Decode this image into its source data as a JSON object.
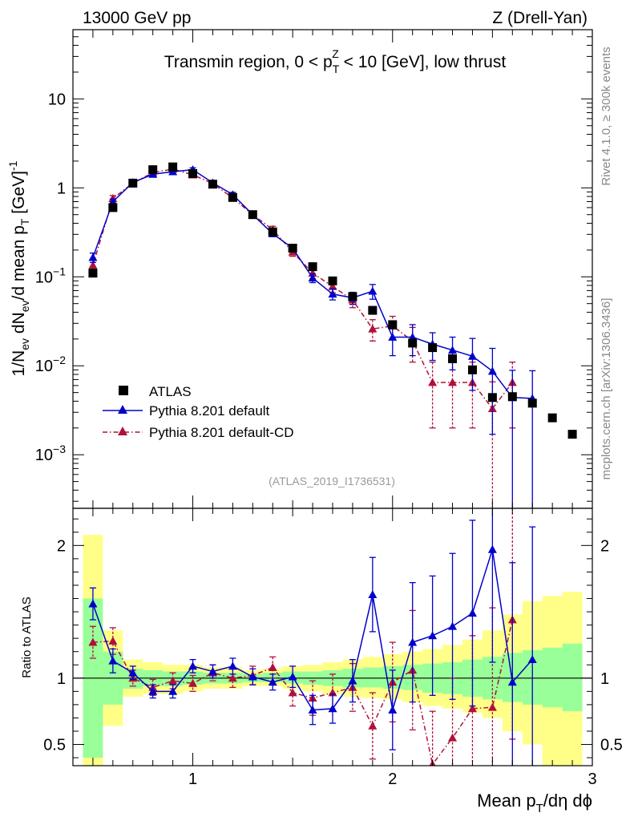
{
  "header": {
    "left": "13000 GeV pp",
    "right": "Z (Drell-Yan)"
  },
  "side": {
    "rivet": "Rivet 4.1.0, ≥ 300k events",
    "mcplots": "mcplots.cern.ch [arXiv:1306.3436]"
  },
  "chart_data": [
    {
      "panel": "main",
      "type": "scatter",
      "title_parts": [
        "Transmin region, 0 < p",
        "T",
        "Z",
        " < 10 [GeV], low thrust"
      ],
      "ylabel_parts": [
        "1/N",
        "ev",
        " dN",
        "ev",
        "/d mean p",
        "T",
        " [GeV]",
        "-1"
      ],
      "analysis_id": "(ATLAS_2019_I1736531)",
      "yscale": "log",
      "xlim": [
        0.4,
        3.0
      ],
      "ylim": [
        0.00025,
        60
      ],
      "y_ticks": [
        {
          "v": 0.001,
          "m": "10",
          "e": "−3"
        },
        {
          "v": 0.01,
          "m": "10",
          "e": "−2"
        },
        {
          "v": 0.1,
          "m": "10",
          "e": "−1"
        },
        {
          "v": 1,
          "m": "1",
          "e": ""
        },
        {
          "v": 10,
          "m": "10",
          "e": ""
        }
      ],
      "legend": {
        "position": "lower-left",
        "entries": [
          "ATLAS",
          "Pythia 8.201 default",
          "Pythia 8.201 default-CD"
        ]
      },
      "series": [
        {
          "name": "ATLAS",
          "color": "#000000",
          "marker": "square",
          "x": [
            0.5,
            0.6,
            0.7,
            0.8,
            0.9,
            1.0,
            1.1,
            1.2,
            1.3,
            1.4,
            1.5,
            1.6,
            1.7,
            1.8,
            1.9,
            2.0,
            2.1,
            2.2,
            2.3,
            2.4,
            2.5,
            2.6,
            2.7,
            2.8,
            2.9
          ],
          "y": [
            0.11,
            0.6,
            1.13,
            1.6,
            1.72,
            1.45,
            1.1,
            0.78,
            0.5,
            0.32,
            0.21,
            0.13,
            0.09,
            0.06,
            0.042,
            0.029,
            0.018,
            0.016,
            0.012,
            0.009,
            0.0044,
            0.0045,
            0.0038,
            0.0026,
            0.0017
          ]
        },
        {
          "name": "Pythia 8.201 default",
          "color": "#0000cc",
          "marker": "triangle",
          "line": "solid",
          "x": [
            0.5,
            0.6,
            0.7,
            0.8,
            0.9,
            1.0,
            1.1,
            1.2,
            1.3,
            1.4,
            1.5,
            1.6,
            1.7,
            1.8,
            1.9,
            2.0,
            2.1,
            2.2,
            2.3,
            2.4,
            2.5,
            2.6,
            2.7
          ],
          "y": [
            0.165,
            0.7,
            1.15,
            1.42,
            1.52,
            1.6,
            1.14,
            0.84,
            0.5,
            0.305,
            0.21,
            0.097,
            0.064,
            0.058,
            0.069,
            0.021,
            0.021,
            0.0175,
            0.015,
            0.0128,
            0.0087,
            0.0044,
            0.0043
          ],
          "yerr": [
            0.02,
            0.05,
            0.06,
            0.07,
            0.07,
            0.08,
            0.06,
            0.05,
            0.03,
            0.02,
            0.02,
            0.011,
            0.009,
            0.009,
            0.013,
            0.008,
            0.008,
            0.006,
            0.006,
            0.0075,
            0.007,
            0.0045,
            0.0045
          ]
        },
        {
          "name": "Pythia 8.201 default-CD",
          "color": "#b0103a",
          "marker": "triangle",
          "line": "dashdot",
          "x": [
            0.5,
            0.6,
            0.7,
            0.8,
            0.9,
            1.0,
            1.1,
            1.2,
            1.3,
            1.4,
            1.5,
            1.6,
            1.7,
            1.8,
            1.9,
            2.0,
            2.1,
            2.2,
            2.3,
            2.4,
            2.5,
            2.6
          ],
          "y": [
            0.135,
            0.76,
            1.13,
            1.48,
            1.63,
            1.4,
            1.12,
            0.77,
            0.5,
            0.34,
            0.19,
            0.11,
            0.078,
            0.055,
            0.026,
            0.028,
            0.019,
            0.0065,
            0.0065,
            0.0065,
            0.0033,
            0.0065
          ],
          "yerr": [
            0.02,
            0.06,
            0.07,
            0.08,
            0.08,
            0.08,
            0.06,
            0.05,
            0.035,
            0.03,
            0.02,
            0.015,
            0.012,
            0.01,
            0.007,
            0.008,
            0.008,
            0.0045,
            0.0045,
            0.0045,
            0.0033,
            0.0045
          ]
        }
      ]
    },
    {
      "panel": "ratio",
      "type": "line",
      "ylabel": "Ratio to ATLAS",
      "xlabel_parts": [
        "Mean p",
        "T",
        "/dη dϕ"
      ],
      "xlim": [
        0.4,
        3.0
      ],
      "ylim": [
        0.34,
        2.28
      ],
      "x_ticks": [
        1,
        2,
        3
      ],
      "y_ticks": [
        0.5,
        1,
        2
      ],
      "reference_line": 1,
      "bands": {
        "edges": [
          0.45,
          0.55,
          0.65,
          0.75,
          0.85,
          0.95,
          1.05,
          1.15,
          1.25,
          1.35,
          1.45,
          1.55,
          1.65,
          1.75,
          1.85,
          1.95,
          2.05,
          2.15,
          2.25,
          2.35,
          2.45,
          2.55,
          2.65,
          2.75,
          2.85,
          2.95
        ],
        "inner_color": "#99ff99",
        "outer_color": "#ffff88",
        "inner": [
          [
            0.4,
            1.6
          ],
          [
            0.8,
            1.2
          ],
          [
            0.92,
            1.07
          ],
          [
            0.94,
            1.06
          ],
          [
            0.94,
            1.05
          ],
          [
            0.95,
            1.05
          ],
          [
            0.96,
            1.04
          ],
          [
            0.96,
            1.04
          ],
          [
            0.97,
            1.03
          ],
          [
            0.97,
            1.04
          ],
          [
            0.96,
            1.05
          ],
          [
            0.95,
            1.05
          ],
          [
            0.94,
            1.06
          ],
          [
            0.93,
            1.07
          ],
          [
            0.93,
            1.08
          ],
          [
            0.92,
            1.09
          ],
          [
            0.91,
            1.1
          ],
          [
            0.89,
            1.11
          ],
          [
            0.88,
            1.12
          ],
          [
            0.86,
            1.14
          ],
          [
            0.84,
            1.16
          ],
          [
            0.82,
            1.19
          ],
          [
            0.8,
            1.21
          ],
          [
            0.78,
            1.23
          ],
          [
            0.75,
            1.26
          ]
        ],
        "outer": [
          [
            0.32,
            2.08
          ],
          [
            0.64,
            1.36
          ],
          [
            0.86,
            1.14
          ],
          [
            0.88,
            1.12
          ],
          [
            0.88,
            1.1
          ],
          [
            0.9,
            1.1
          ],
          [
            0.92,
            1.08
          ],
          [
            0.92,
            1.08
          ],
          [
            0.94,
            1.06
          ],
          [
            0.94,
            1.07
          ],
          [
            0.92,
            1.09
          ],
          [
            0.9,
            1.1
          ],
          [
            0.88,
            1.12
          ],
          [
            0.86,
            1.14
          ],
          [
            0.85,
            1.16
          ],
          [
            0.84,
            1.18
          ],
          [
            0.82,
            1.2
          ],
          [
            0.79,
            1.22
          ],
          [
            0.77,
            1.25
          ],
          [
            0.74,
            1.29
          ],
          [
            0.7,
            1.36
          ],
          [
            0.6,
            1.48
          ],
          [
            0.5,
            1.58
          ],
          [
            0.34,
            1.62
          ],
          [
            0.34,
            1.65
          ]
        ]
      },
      "series": [
        {
          "name": "Pythia 8.201 default",
          "color": "#0000cc",
          "x": [
            0.5,
            0.6,
            0.7,
            0.8,
            0.9,
            1.0,
            1.1,
            1.2,
            1.3,
            1.4,
            1.5,
            1.6,
            1.7,
            1.8,
            1.9,
            2.0,
            2.1,
            2.2,
            2.3,
            2.4,
            2.5,
            2.6,
            2.7
          ],
          "y": [
            1.56,
            1.13,
            1.04,
            0.9,
            0.9,
            1.09,
            1.05,
            1.09,
            1.01,
            0.97,
            1.01,
            0.76,
            0.77,
            0.98,
            1.63,
            0.76,
            1.27,
            1.32,
            1.39,
            1.49,
            1.97,
            0.97,
            1.14
          ],
          "yerr": [
            0.12,
            0.09,
            0.05,
            0.05,
            0.05,
            0.05,
            0.05,
            0.06,
            0.06,
            0.06,
            0.08,
            0.11,
            0.11,
            0.16,
            0.28,
            0.3,
            0.45,
            0.45,
            0.55,
            0.7,
            0.85,
            0.9,
            1.0
          ]
        },
        {
          "name": "Pythia 8.201 default-CD",
          "color": "#b0103a",
          "x": [
            0.5,
            0.6,
            0.7,
            0.8,
            0.9,
            1.0,
            1.1,
            1.2,
            1.3,
            1.4,
            1.5,
            1.6,
            1.7,
            1.8,
            1.9,
            2.0,
            2.1,
            2.2,
            2.3,
            2.4,
            2.5,
            2.6
          ],
          "y": [
            1.27,
            1.28,
            1.0,
            0.93,
            0.98,
            0.96,
            1.04,
            1.0,
            1.02,
            1.08,
            0.89,
            0.85,
            0.89,
            0.93,
            0.64,
            0.97,
            1.06,
            0.35,
            0.55,
            0.77,
            0.78,
            1.44
          ],
          "yerr": [
            0.12,
            0.1,
            0.06,
            0.06,
            0.06,
            0.06,
            0.06,
            0.07,
            0.07,
            0.08,
            0.1,
            0.13,
            0.14,
            0.18,
            0.25,
            0.3,
            0.45,
            0.4,
            0.45,
            0.55,
            0.75,
            0.9
          ]
        }
      ]
    }
  ]
}
